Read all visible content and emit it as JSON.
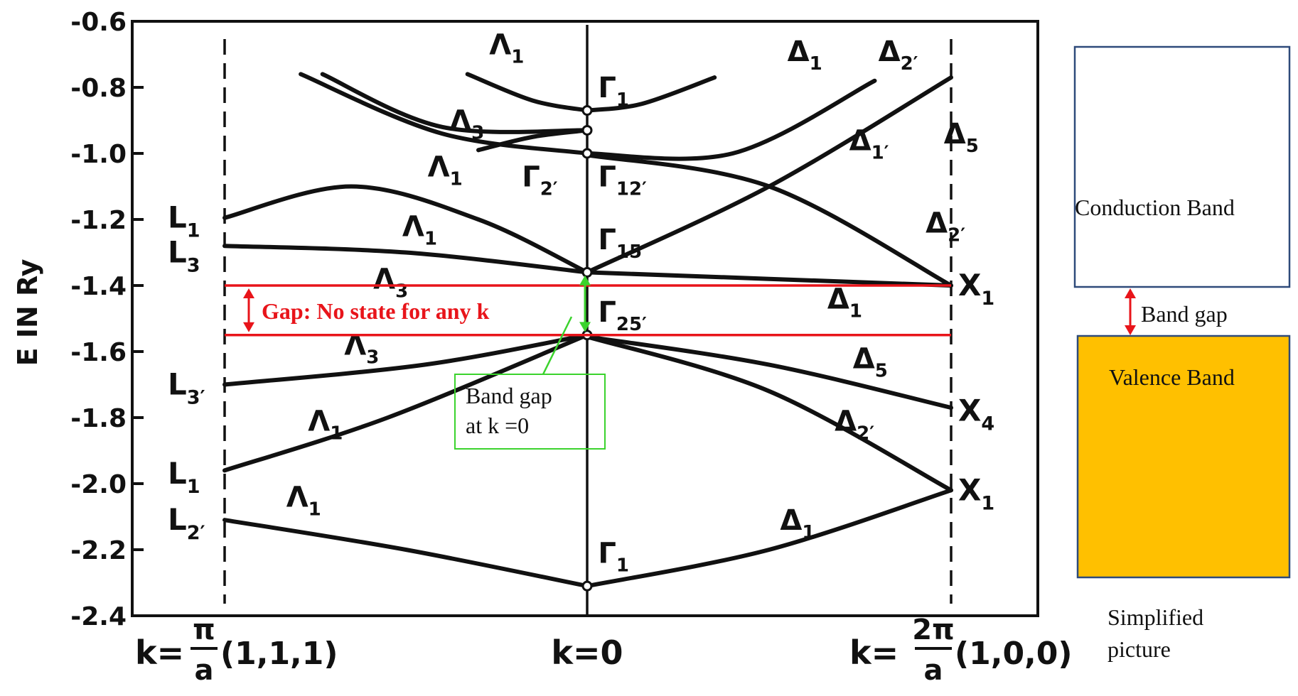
{
  "chart_data": {
    "type": "line",
    "ylabel": "E IN Ry",
    "ylim": [
      -2.4,
      -0.6
    ],
    "yticks": [
      "-0.6",
      "-0.8",
      "-1.0",
      "-1.2",
      "-1.4",
      "-1.6",
      "-1.8",
      "-2.0",
      "-2.2",
      "-2.4"
    ],
    "ytick_values": [
      -0.6,
      -0.8,
      -1.0,
      -1.2,
      -1.4,
      -1.6,
      -1.8,
      -2.0,
      -2.2,
      -2.4
    ],
    "x_range": [
      -1,
      1
    ],
    "x_labels": {
      "left_k": "k=",
      "left_frac_num": "π",
      "left_frac_den": "a",
      "left_vec": "(1,1,1)",
      "center": "k=0",
      "right_k": "k=",
      "right_frac_num": "2π",
      "right_frac_den": "a",
      "right_vec": "(1,0,0)"
    },
    "series": [
      {
        "x": [
          -1,
          -0.65,
          -0.3,
          0
        ],
        "y": [
          -1.195,
          -1.1,
          -1.2,
          -1.36
        ]
      },
      {
        "x": [
          -1,
          -0.5,
          0
        ],
        "y": [
          -1.28,
          -1.3,
          -1.36
        ]
      },
      {
        "x": [
          0,
          1
        ],
        "y": [
          -1.36,
          -1.4
        ]
      },
      {
        "x": [
          -1,
          -0.45,
          0
        ],
        "y": [
          -1.7,
          -1.64,
          -1.55
        ]
      },
      {
        "x": [
          -1,
          -0.55,
          0
        ],
        "y": [
          -1.96,
          -1.8,
          -1.55
        ]
      },
      {
        "x": [
          0,
          0.5,
          1
        ],
        "y": [
          -1.555,
          -1.64,
          -1.77
        ]
      },
      {
        "x": [
          0,
          0.5,
          1
        ],
        "y": [
          -1.555,
          -1.72,
          -2.02
        ]
      },
      {
        "x": [
          -1,
          -0.5,
          0
        ],
        "y": [
          -2.11,
          -2.2,
          -2.31
        ]
      },
      {
        "x": [
          0,
          0.5,
          1
        ],
        "y": [
          -2.31,
          -2.2,
          -2.02
        ]
      },
      {
        "x": [
          0,
          0.5,
          1
        ],
        "y": [
          -1.36,
          -1.1,
          -0.77
        ]
      },
      {
        "x": [
          -0.79,
          -0.4,
          0
        ],
        "y": [
          -0.76,
          -0.94,
          -1.0
        ]
      },
      {
        "x": [
          0,
          0.4,
          0.79
        ],
        "y": [
          -1.0,
          -1.0,
          -0.78
        ]
      },
      {
        "x": [
          -0.73,
          -0.4,
          0
        ],
        "y": [
          -0.76,
          -0.92,
          -0.93
        ]
      },
      {
        "x": [
          0,
          0.5,
          1
        ],
        "y": [
          -1.005,
          -1.1,
          -1.4
        ]
      },
      {
        "x": [
          -0.33,
          -0.15,
          0
        ],
        "y": [
          -0.76,
          -0.84,
          -0.87
        ]
      },
      {
        "x": [
          0,
          0.15,
          0.35
        ],
        "y": [
          -0.87,
          -0.85,
          -0.77
        ]
      },
      {
        "x": [
          -0.3,
          -0.15,
          0
        ],
        "y": [
          -0.99,
          -0.95,
          -0.93
        ]
      }
    ],
    "gap_lines": [
      -1.4,
      -1.55
    ],
    "gap_label": "Gap: No state for any k",
    "band_gap_k0_label": [
      "Band gap",
      "at k =0"
    ],
    "annotations": [
      {
        "text": "Λ",
        "sub": "1",
        "x": -0.27,
        "y": -0.7
      },
      {
        "text": "Δ",
        "sub": "1",
        "x": 0.55,
        "y": -0.72
      },
      {
        "text": "Δ",
        "sub": "2′",
        "x": 0.8,
        "y": -0.72
      },
      {
        "text": "Γ",
        "sub": "1",
        "x": 0.03,
        "y": -0.83
      },
      {
        "text": "Λ",
        "sub": "3",
        "x": -0.38,
        "y": -0.93
      },
      {
        "text": "Δ",
        "sub": "1′",
        "x": 0.72,
        "y": -0.99
      },
      {
        "text": "Δ",
        "sub": "5",
        "x": 0.98,
        "y": -0.97
      },
      {
        "text": "Λ",
        "sub": "1",
        "x": -0.44,
        "y": -1.07
      },
      {
        "text": "Γ",
        "sub": "2′",
        "x": -0.18,
        "y": -1.1
      },
      {
        "text": "Γ",
        "sub": "12′",
        "x": 0.03,
        "y": -1.1
      },
      {
        "text": "Λ",
        "sub": "1",
        "x": -0.51,
        "y": -1.25
      },
      {
        "text": "Δ",
        "sub": "2′",
        "x": 0.93,
        "y": -1.24
      },
      {
        "text": "Γ",
        "sub": "15",
        "x": 0.03,
        "y": -1.29
      },
      {
        "text": "Λ",
        "sub": "3",
        "x": -0.59,
        "y": -1.41
      },
      {
        "text": "Δ",
        "sub": "1",
        "x": 0.66,
        "y": -1.47
      },
      {
        "text": "Γ",
        "sub": "25′",
        "x": 0.03,
        "y": -1.51
      },
      {
        "text": "Λ",
        "sub": "3",
        "x": -0.67,
        "y": -1.61
      },
      {
        "text": "Δ",
        "sub": "5",
        "x": 0.73,
        "y": -1.65
      },
      {
        "text": "Λ",
        "sub": "1",
        "x": -0.77,
        "y": -1.84
      },
      {
        "text": "Δ",
        "sub": "2′",
        "x": 0.68,
        "y": -1.84
      },
      {
        "text": "Λ",
        "sub": "1",
        "x": -0.83,
        "y": -2.07
      },
      {
        "text": "Δ",
        "sub": "1",
        "x": 0.53,
        "y": -2.14
      },
      {
        "text": "Γ",
        "sub": "1",
        "x": 0.03,
        "y": -2.24
      }
    ],
    "point_labels": [
      {
        "text": "L",
        "sub": "1",
        "y": -1.195,
        "side": "left"
      },
      {
        "text": "L",
        "sub": "3",
        "y": -1.3,
        "side": "left"
      },
      {
        "text": "L",
        "sub": "3′",
        "y": -1.7,
        "side": "left"
      },
      {
        "text": "L",
        "sub": "1",
        "y": -1.97,
        "side": "left"
      },
      {
        "text": "L",
        "sub": "2′",
        "y": -2.11,
        "side": "left"
      },
      {
        "text": "X",
        "sub": "1",
        "y": -1.4,
        "side": "right"
      },
      {
        "text": "X",
        "sub": "4",
        "y": -1.78,
        "side": "right"
      },
      {
        "text": "X",
        "sub": "1",
        "y": -2.02,
        "side": "right"
      }
    ],
    "gamma_points": [
      -0.87,
      -0.93,
      -1.0,
      -1.36,
      -1.55,
      -2.31
    ]
  },
  "simplified": {
    "conduction_label": "Conduction Band",
    "gap_label": "Band gap",
    "valence_label": "Valence Band",
    "caption_line1": "Simplified",
    "caption_line2": "picture",
    "conduction_border": "#2e4a7a",
    "valence_fill": "#ffc000",
    "valence_border": "#2e4a7a"
  },
  "colors": {
    "gap_red": "#e8141a",
    "band_gap_green": "#3bd32d",
    "curve": "#111111"
  }
}
